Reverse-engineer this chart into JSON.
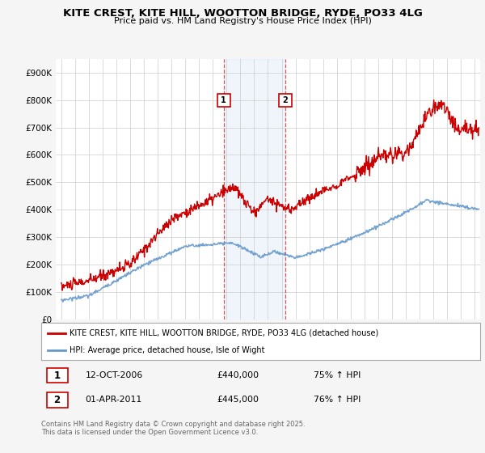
{
  "title": "KITE CREST, KITE HILL, WOOTTON BRIDGE, RYDE, PO33 4LG",
  "subtitle": "Price paid vs. HM Land Registry's House Price Index (HPI)",
  "ylim": [
    0,
    950000
  ],
  "yticks": [
    0,
    100000,
    200000,
    300000,
    400000,
    500000,
    600000,
    700000,
    800000,
    900000
  ],
  "ytick_labels": [
    "£0",
    "£100K",
    "£200K",
    "£300K",
    "£400K",
    "£500K",
    "£600K",
    "£700K",
    "£800K",
    "£900K"
  ],
  "house_color": "#cc0000",
  "hpi_color": "#6699cc",
  "marker1_x": 2006.79,
  "marker1_y": 440000,
  "marker1_label": "1",
  "marker2_x": 2011.25,
  "marker2_y": 445000,
  "marker2_label": "2",
  "legend1_text": "KITE CREST, KITE HILL, WOOTTON BRIDGE, RYDE, PO33 4LG (detached house)",
  "legend2_text": "HPI: Average price, detached house, Isle of Wight",
  "footer": "Contains HM Land Registry data © Crown copyright and database right 2025.\nThis data is licensed under the Open Government Licence v3.0.",
  "background_color": "#f5f5f5",
  "plot_bg_color": "#ffffff",
  "vline1_x": 2006.79,
  "vline2_x": 2011.25,
  "shade_x1": 2006.79,
  "shade_x2": 2011.25,
  "xlim_left": 1994.6,
  "xlim_right": 2025.4
}
